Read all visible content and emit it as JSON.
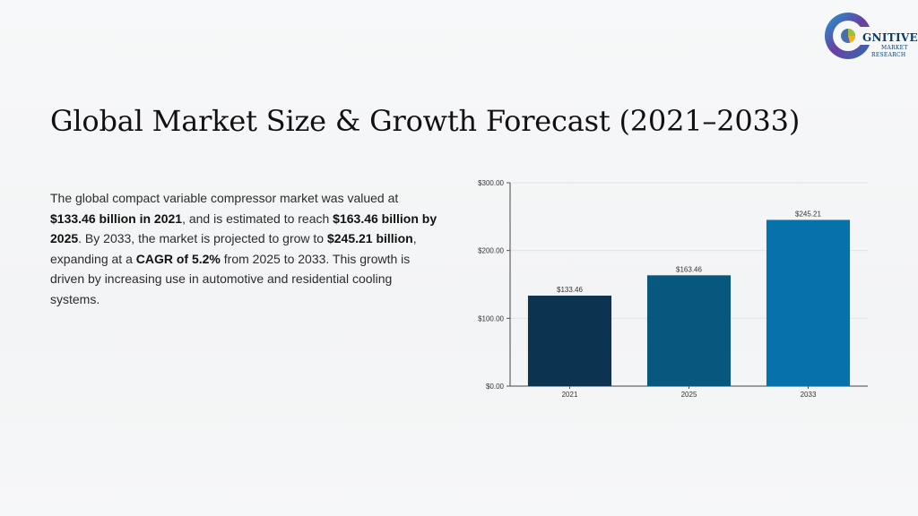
{
  "logo": {
    "line1": "GNITIVE",
    "line2": "MARKET",
    "line3": "RESEARCH"
  },
  "title": "Global Market Size & Growth Forecast (2021–2033)",
  "description": {
    "parts": [
      {
        "text": "The global compact variable compressor market was valued at ",
        "bold": false
      },
      {
        "text": "$133.46 billion in 2021",
        "bold": true
      },
      {
        "text": ", and is estimated to reach ",
        "bold": false
      },
      {
        "text": "$163.46 billion by 2025",
        "bold": true
      },
      {
        "text": ". By 2033, the market is projected to grow to ",
        "bold": false
      },
      {
        "text": "$245.21 billion",
        "bold": true
      },
      {
        "text": ", expanding at a ",
        "bold": false
      },
      {
        "text": "CAGR of 5.2%",
        "bold": true
      },
      {
        "text": " from 2025 to 2033. This growth is driven by increasing use in automotive and residential cooling systems.",
        "bold": false
      }
    ]
  },
  "chart_data": {
    "type": "bar",
    "categories": [
      "2021",
      "2025",
      "2033"
    ],
    "values": [
      133.46,
      163.46,
      245.21
    ],
    "data_labels": [
      "$133.46",
      "$163.46",
      "$245.21"
    ],
    "bar_colors": [
      "#0c3350",
      "#07577f",
      "#0672ab"
    ],
    "ylim": [
      0,
      300
    ],
    "yticks": [
      0,
      100,
      200,
      300
    ],
    "ytick_labels": [
      "$0.00",
      "$100.00",
      "$200.00",
      "$300.00"
    ],
    "grid": true,
    "title": "",
    "xlabel": "",
    "ylabel": ""
  }
}
